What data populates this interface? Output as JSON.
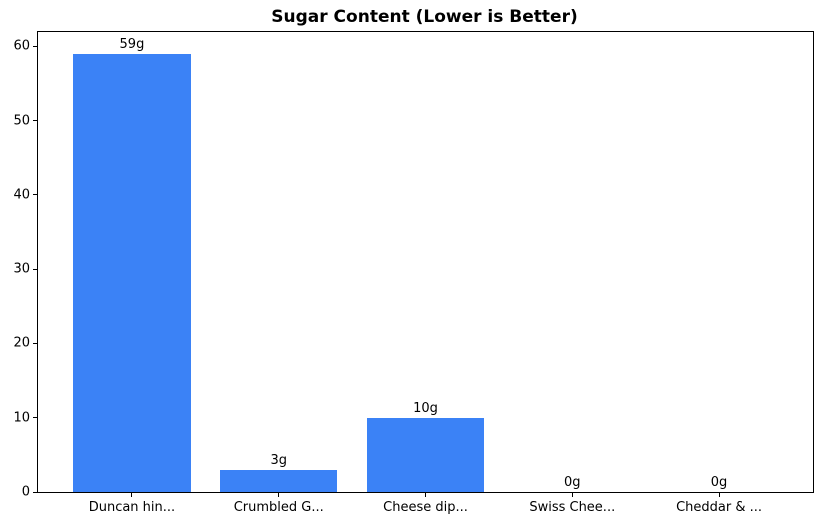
{
  "chart_data": {
    "type": "bar",
    "title": "Sugar Content (Lower is Better)",
    "categories": [
      "Duncan hin...",
      "Crumbled G...",
      "Cheese dip...",
      "Swiss Chee...",
      "Cheddar & ..."
    ],
    "values": [
      59,
      3,
      10,
      0,
      0
    ],
    "bar_labels": [
      "59g",
      "3g",
      "10g",
      "0g",
      "0g"
    ],
    "xlabel": "",
    "ylabel": "",
    "yticks": [
      0,
      10,
      20,
      30,
      40,
      50,
      60
    ],
    "ylim": [
      0,
      61.95
    ],
    "bar_color": "#3b82f6",
    "grid": false,
    "legend": "none"
  }
}
